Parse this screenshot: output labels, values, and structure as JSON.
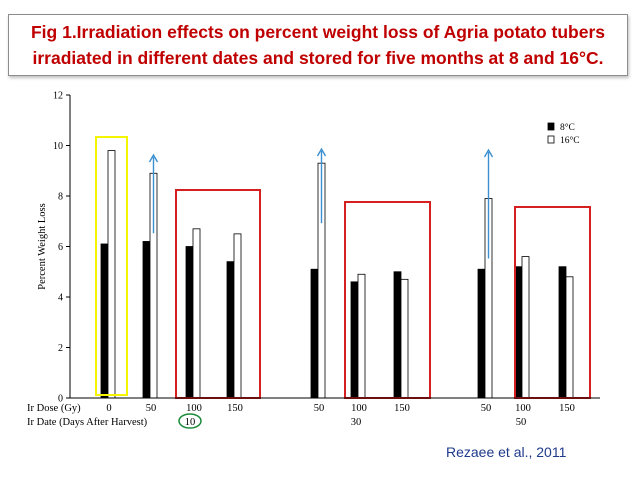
{
  "title_line1": "Fig 1.Irradiation effects on percent weight loss of Agria potato tubers",
  "title_line2": "irradiated in different dates and stored for five months at 8 and 16°C.",
  "citation": "Rezaee et al., 2011",
  "chart_data": {
    "type": "bar",
    "ylabel": "Percent Weight Loss",
    "ylim": [
      0,
      12
    ],
    "yticks": [
      0,
      2,
      4,
      6,
      8,
      10,
      12
    ],
    "row1_label": "Ir Dose (Gy)",
    "row2_label": "Ir  Date (Days After Harvest)",
    "dose_labels": [
      "0",
      "50",
      "100",
      "150",
      "50",
      "100",
      "150",
      "50",
      "100",
      "150"
    ],
    "date_labels": [
      "10",
      "30",
      "50"
    ],
    "series": [
      {
        "name": "8°C",
        "color": "#000000",
        "values": [
          6.1,
          6.2,
          6.0,
          5.4,
          5.1,
          4.6,
          5.0,
          5.1,
          5.2,
          5.2
        ]
      },
      {
        "name": "16°C",
        "color": "#ffffff",
        "values": [
          9.8,
          8.9,
          6.7,
          6.5,
          9.3,
          4.9,
          4.7,
          7.9,
          5.6,
          4.8
        ]
      }
    ],
    "legend_position": "top-right",
    "highlight_colors": {
      "control": "#f5f500",
      "group": "#d62020",
      "date": "#1a8a3a",
      "arrow": "#3a90d0"
    }
  }
}
